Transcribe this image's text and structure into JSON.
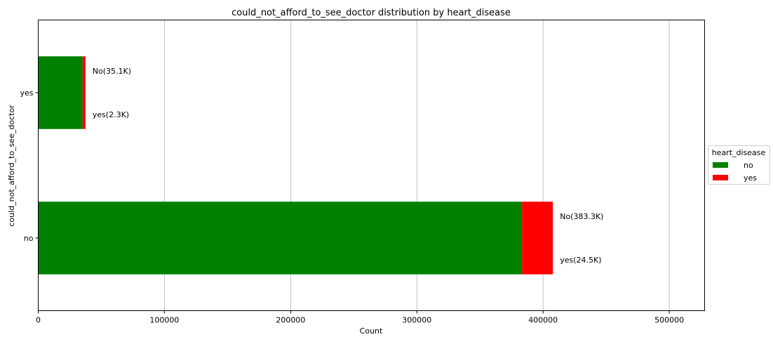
{
  "chart_data": {
    "type": "bar",
    "orientation": "horizontal",
    "stacked": true,
    "title": "could_not_afford_to_see_doctor distribution by heart_disease",
    "xlabel": "Count",
    "ylabel": "could_not_afford_to_see_doctor",
    "categories": [
      "no",
      "yes"
    ],
    "series": [
      {
        "name": "no",
        "color": "#008000",
        "values": [
          383300,
          35100
        ]
      },
      {
        "name": "yes",
        "color": "#ff0000",
        "values": [
          24500,
          2300
        ]
      }
    ],
    "annotations": [
      {
        "category": "no",
        "lines": [
          "No(383.3K)",
          "yes(24.5K)"
        ]
      },
      {
        "category": "yes",
        "lines": [
          "No(35.1K)",
          "yes(2.3K)"
        ]
      }
    ],
    "xlim": [
      0,
      528000
    ],
    "xticks": [
      0,
      100000,
      200000,
      300000,
      400000,
      500000
    ],
    "grid": "vertical",
    "legend": {
      "title": "heart_disease",
      "placement": "outside-right"
    }
  }
}
